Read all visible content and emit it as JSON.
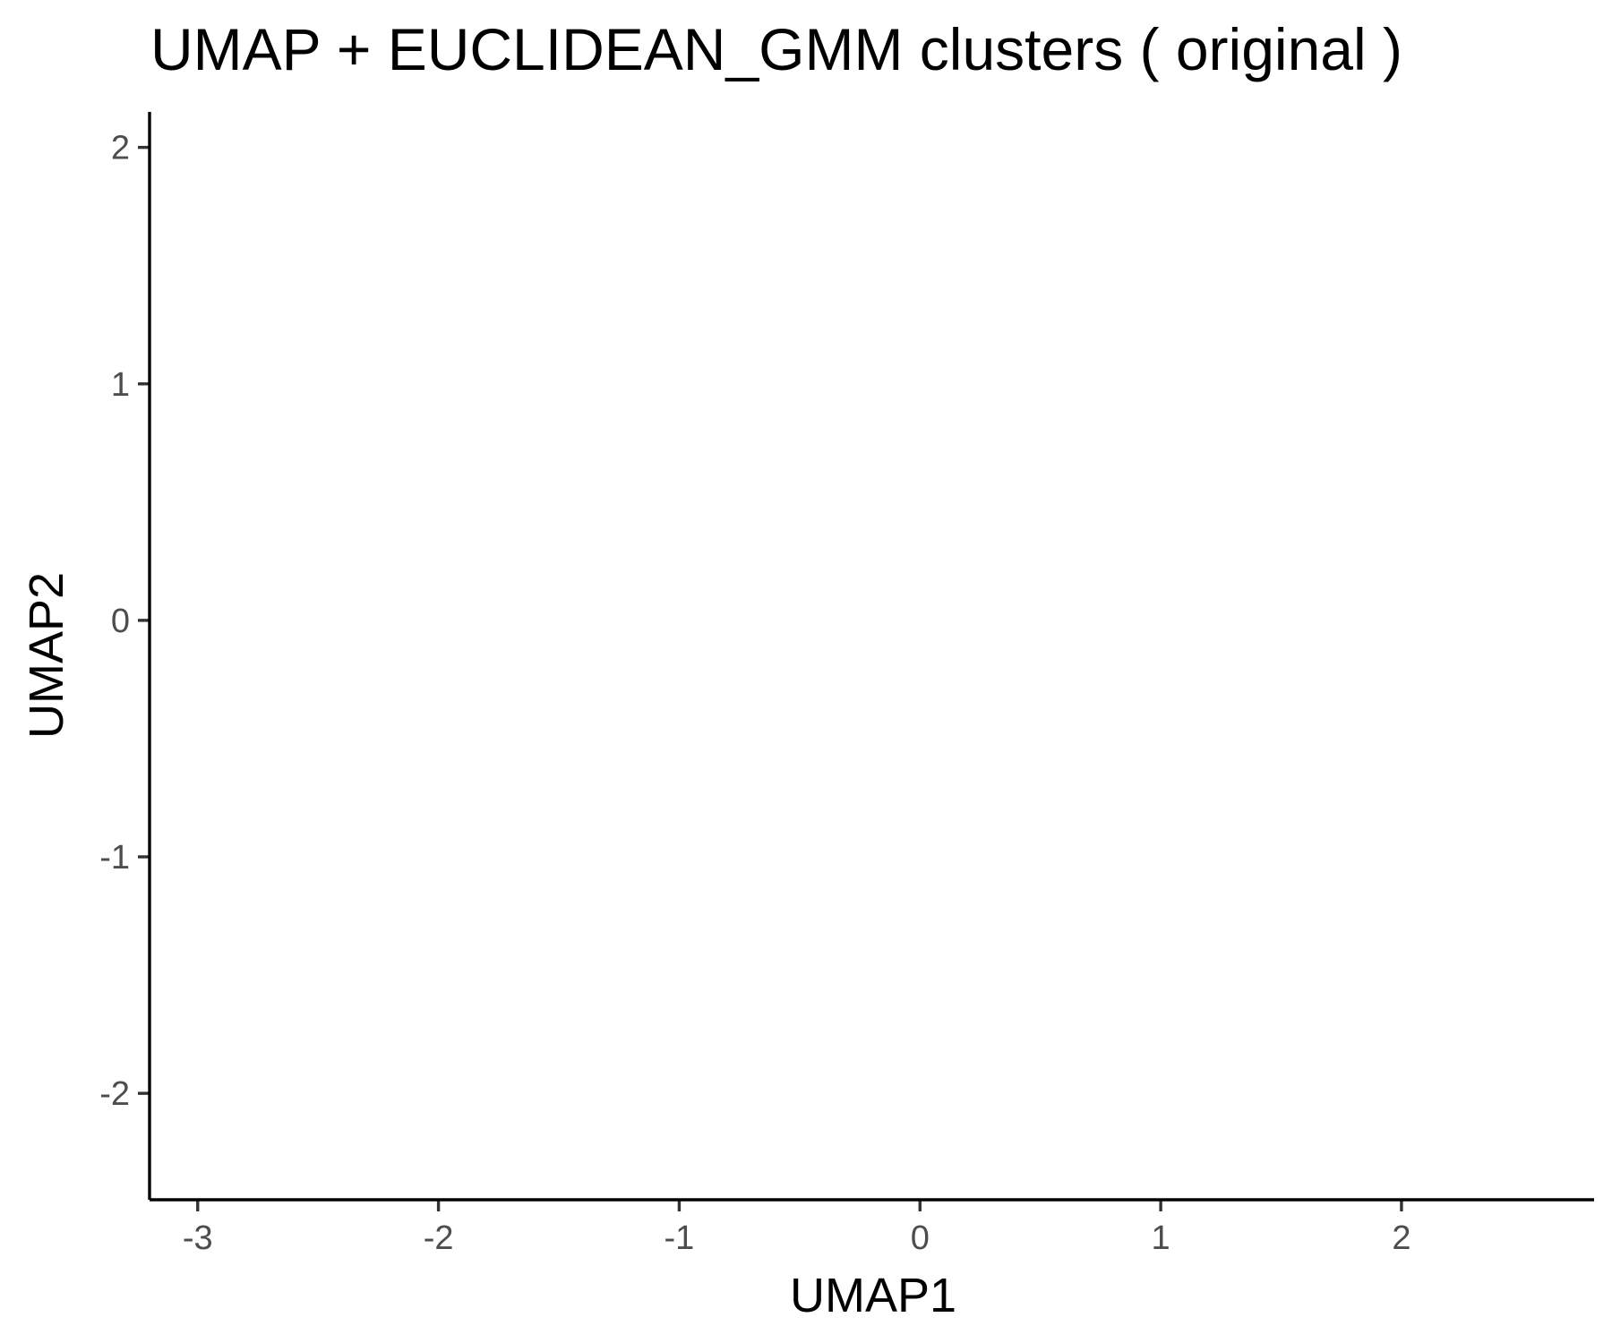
{
  "chart_data": {
    "type": "scatter",
    "title": "UMAP + EUCLIDEAN_GMM clusters ( original )",
    "xlabel": "UMAP1",
    "ylabel": "UMAP2",
    "xlim": [
      -3.2,
      2.8
    ],
    "ylim": [
      -2.45,
      2.15
    ],
    "x_ticks": [
      -3,
      -2,
      -1,
      0,
      1,
      2
    ],
    "y_ticks": [
      -2,
      -1,
      0,
      1,
      2
    ],
    "grid": false,
    "series": []
  }
}
